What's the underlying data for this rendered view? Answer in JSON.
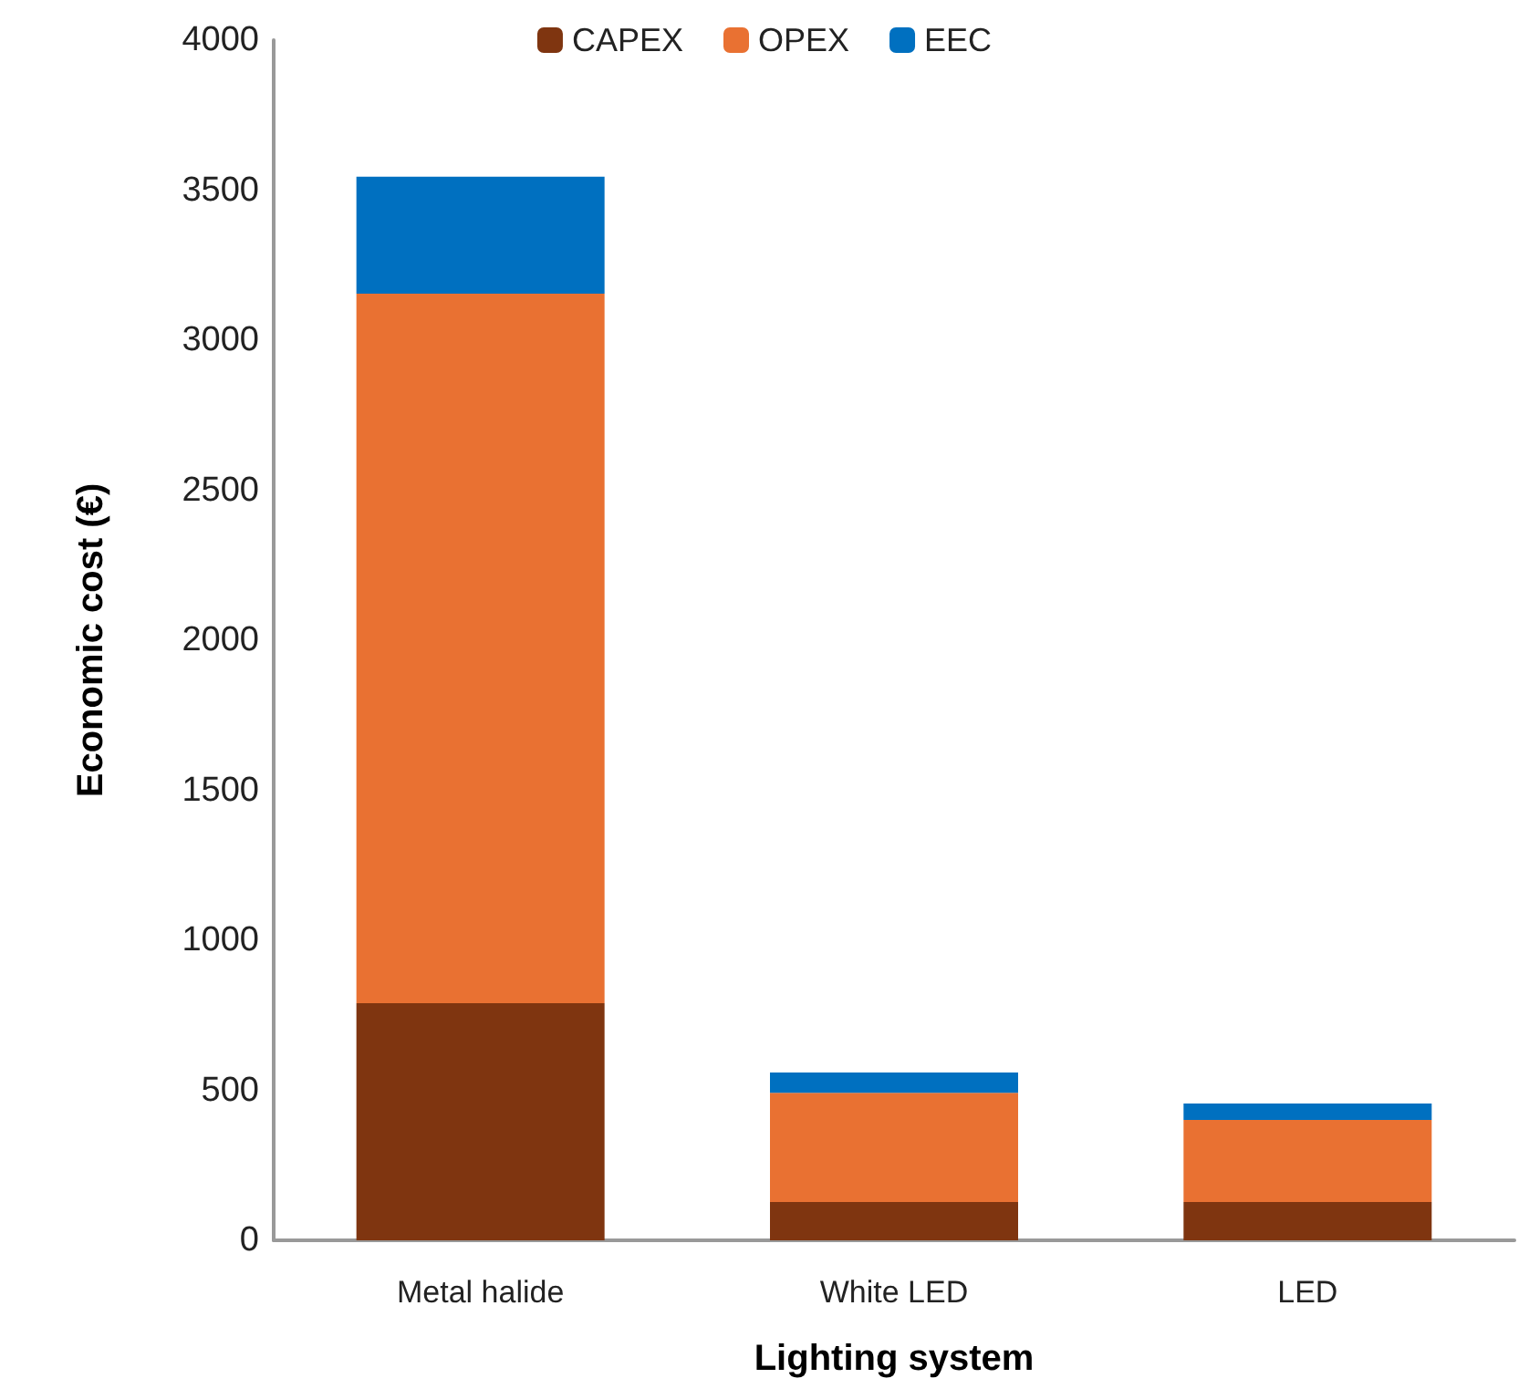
{
  "chart_data": {
    "type": "bar",
    "stacked": true,
    "xlabel": "Lighting system",
    "ylabel": "Economic cost (€)",
    "categories": [
      "Metal halide",
      "White LED",
      "LED"
    ],
    "series": [
      {
        "name": "CAPEX",
        "color": "#7f3510",
        "values": [
          790,
          128,
          128
        ]
      },
      {
        "name": "OPEX",
        "color": "#e97132",
        "values": [
          2365,
          364,
          273
        ]
      },
      {
        "name": "EEC",
        "color": "#0070c0",
        "values": [
          390,
          67,
          55
        ]
      }
    ],
    "ylim": [
      0,
      4000
    ],
    "yticks": [
      0,
      500,
      1000,
      1500,
      2000,
      2500,
      3000,
      3500,
      4000
    ],
    "grid": false,
    "legend": "top"
  }
}
